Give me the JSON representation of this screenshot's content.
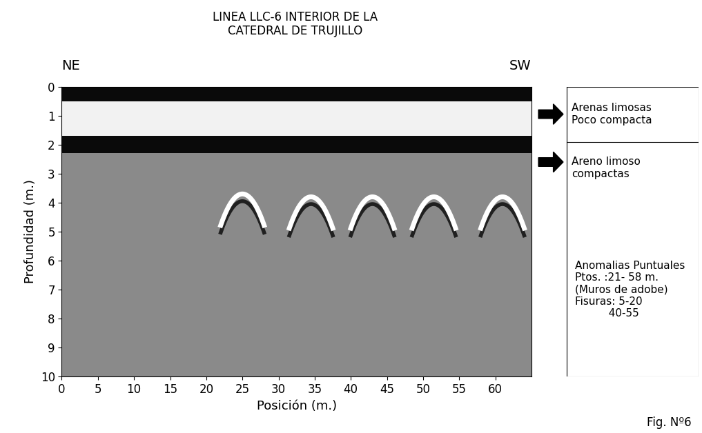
{
  "chart_data": {
    "type": "radargram",
    "title": "LINEA LLC-6 INTERIOR DE LA\nCATEDRAL DE TRUJILLO",
    "direction_labels": [
      "NE",
      "SW"
    ],
    "x_label": "Posición (m.)",
    "y_label": "Profundidad (m.)",
    "xlim": [
      0,
      65
    ],
    "ylim": [
      10,
      0
    ],
    "xticks": [
      0,
      5,
      10,
      15,
      20,
      25,
      30,
      35,
      40,
      45,
      50,
      55,
      60
    ],
    "yticks": [
      0,
      1,
      2,
      3,
      4,
      5,
      6,
      7,
      8,
      9,
      10
    ],
    "bands": [
      {
        "top": 0.0,
        "bottom": 0.5,
        "color": "#0a0a0a"
      },
      {
        "top": 0.5,
        "bottom": 1.7,
        "color": "#f2f2f2"
      },
      {
        "top": 1.7,
        "bottom": 2.3,
        "color": "#0a0a0a"
      },
      {
        "top": 2.3,
        "bottom": 10.0,
        "color": "#8a8a8a"
      }
    ],
    "anomalies": [
      {
        "x": 25,
        "depth": 3.7
      },
      {
        "x": 34.5,
        "depth": 3.8
      },
      {
        "x": 43,
        "depth": 3.8
      },
      {
        "x": 51.5,
        "depth": 3.8
      },
      {
        "x": 61,
        "depth": 3.8
      }
    ],
    "interpretation": [
      "Arenas limosas\nPoco compacta",
      "Areno limoso\ncompactas",
      "Anomalias Puntuales\nPtos. :21- 58 m.\n(Muros de adobe)\nFisuras: 5-20\n          40-55"
    ],
    "figure_label": "Fig. Nº6"
  }
}
